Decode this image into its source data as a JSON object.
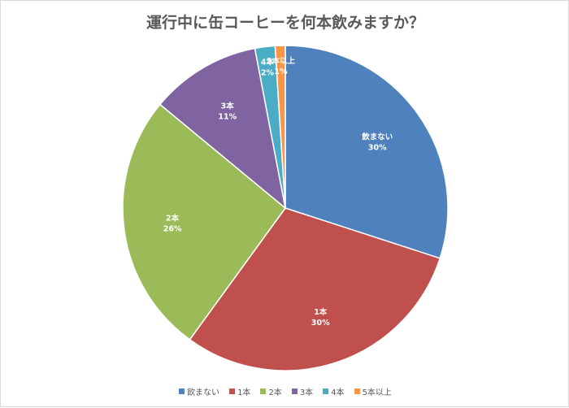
{
  "chart_data": {
    "type": "pie",
    "title": "運行中に缶コーヒーを何本飲みますか？",
    "legend_position": "bottom",
    "slices": [
      {
        "name": "飲まない",
        "value": 30,
        "label": "30%",
        "color": "#4f81bd"
      },
      {
        "name": "1本",
        "value": 30,
        "label": "30%",
        "color": "#c0504d"
      },
      {
        "name": "2本",
        "value": 26,
        "label": "26%",
        "color": "#9bbb59"
      },
      {
        "name": "3本",
        "value": 11,
        "label": "11%",
        "color": "#8064a2"
      },
      {
        "name": "4本",
        "value": 2,
        "label": "2%",
        "color": "#4bacc6"
      },
      {
        "name": "5本以上",
        "value": 1,
        "label": "1%",
        "color": "#f79646"
      }
    ]
  }
}
